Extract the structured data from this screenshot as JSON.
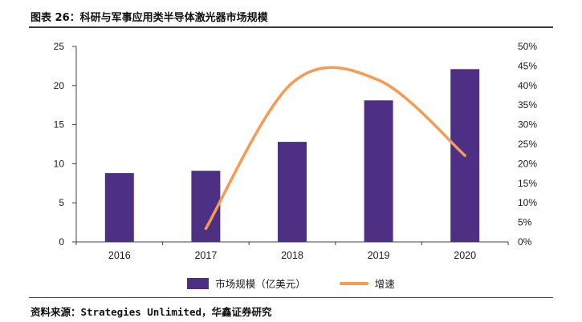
{
  "header": {
    "title": "图表 26：科研与军事应用类半导体激光器市场规模"
  },
  "footer": {
    "source": "资料来源：Strategies Unlimited，华鑫证券研究"
  },
  "chart_data": {
    "type": "combo-bar-line",
    "title": "科研与军事应用类半导体激光器市场规模",
    "categories": [
      "2016",
      "2017",
      "2018",
      "2019",
      "2020"
    ],
    "series": [
      {
        "name": "市场规模（亿美元）",
        "type": "bar",
        "axis": "left",
        "color": "#4d3084",
        "values": [
          8.8,
          9.1,
          12.8,
          18.1,
          22.1
        ]
      },
      {
        "name": "增速",
        "type": "line",
        "axis": "right",
        "color": "#f79a52",
        "unit": "%",
        "values": [
          null,
          3.4,
          40.7,
          41.4,
          22.1
        ]
      }
    ],
    "left_axis": {
      "min": 0,
      "max": 25,
      "step": 5,
      "ticks": [
        "0",
        "5",
        "10",
        "15",
        "20",
        "25"
      ]
    },
    "right_axis": {
      "min": 0,
      "max": 50,
      "step": 5,
      "ticks": [
        "0%",
        "5%",
        "10%",
        "15%",
        "20%",
        "25%",
        "30%",
        "35%",
        "40%",
        "45%",
        "50%"
      ]
    },
    "grid": false,
    "legend_position": "bottom",
    "axis_color": "#404040",
    "text_color": "#1a1a1a"
  }
}
